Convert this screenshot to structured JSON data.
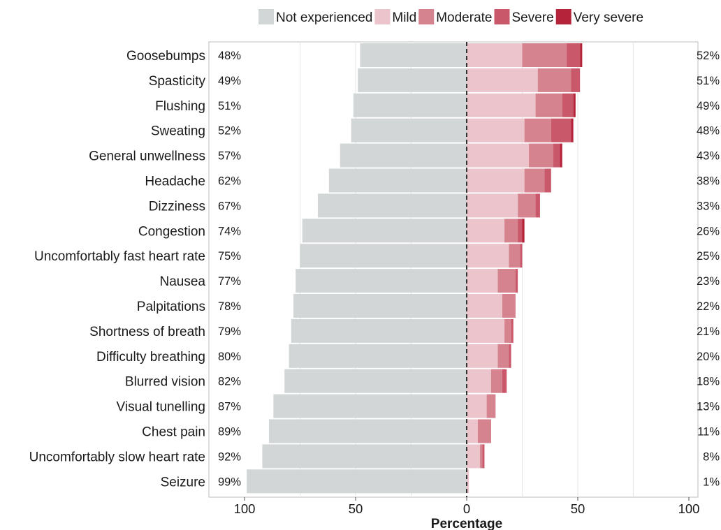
{
  "chart_data": {
    "type": "bar",
    "subtype": "diverging-stacked-horizontal",
    "title": "",
    "xlabel": "Percentage",
    "ylabel": "",
    "xlim": [
      -100,
      100
    ],
    "xticks": [
      {
        "value": -100,
        "label": "100"
      },
      {
        "value": -50,
        "label": "50"
      },
      {
        "value": 0,
        "label": "0"
      },
      {
        "value": 50,
        "label": "50"
      },
      {
        "value": 100,
        "label": "100"
      }
    ],
    "grid": true,
    "legend": {
      "placement": "top",
      "entries": [
        {
          "name": "Not experienced",
          "color": "#d3d6d6"
        },
        {
          "name": "Mild",
          "color": "#ebc4cc"
        },
        {
          "name": "Moderate",
          "color": "#d5838f"
        },
        {
          "name": "Severe",
          "color": "#c9586a"
        },
        {
          "name": "Very severe",
          "color": "#b5233a"
        }
      ]
    },
    "categories": [
      "Goosebumps",
      "Spasticity",
      "Flushing",
      "Sweating",
      "General unwellness",
      "Headache",
      "Dizziness",
      "Congestion",
      "Uncomfortably fast heart rate",
      "Nausea",
      "Palpitations",
      "Shortness of breath",
      "Difficulty breathing",
      "Blurred vision",
      "Visual tunelling",
      "Chest pain",
      "Uncomfortably slow heart rate",
      "Seizure"
    ],
    "left_labels": [
      "48%",
      "49%",
      "51%",
      "52%",
      "57%",
      "62%",
      "67%",
      "74%",
      "75%",
      "77%",
      "78%",
      "79%",
      "80%",
      "82%",
      "87%",
      "89%",
      "92%",
      "99%"
    ],
    "right_labels": [
      "52%",
      "51%",
      "49%",
      "48%",
      "43%",
      "38%",
      "33%",
      "26%",
      "25%",
      "23%",
      "22%",
      "21%",
      "20%",
      "18%",
      "13%",
      "11%",
      "8%",
      "1%"
    ],
    "series": [
      {
        "name": "Not experienced",
        "side": "left",
        "values": [
          48,
          49,
          51,
          52,
          57,
          62,
          67,
          74,
          75,
          77,
          78,
          79,
          80,
          82,
          87,
          89,
          92,
          99
        ]
      },
      {
        "name": "Mild",
        "side": "right",
        "values": [
          25,
          32,
          31,
          26,
          28,
          26,
          23,
          17,
          19,
          14,
          16,
          17,
          14,
          11,
          9,
          5,
          6,
          1
        ]
      },
      {
        "name": "Moderate",
        "side": "right",
        "values": [
          20,
          15,
          12,
          12,
          11,
          9,
          8,
          6,
          5,
          8,
          6,
          3,
          5,
          5,
          4,
          6,
          1,
          0
        ]
      },
      {
        "name": "Severe",
        "side": "right",
        "values": [
          6,
          4,
          5,
          9,
          3,
          3,
          2,
          2,
          1,
          1,
          0,
          1,
          1,
          2,
          0,
          0,
          1,
          0
        ]
      },
      {
        "name": "Very severe",
        "side": "right",
        "values": [
          1,
          0,
          1,
          1,
          1,
          0,
          0,
          1,
          0,
          0,
          0,
          0,
          0,
          0,
          0,
          0,
          0,
          0
        ]
      }
    ]
  }
}
